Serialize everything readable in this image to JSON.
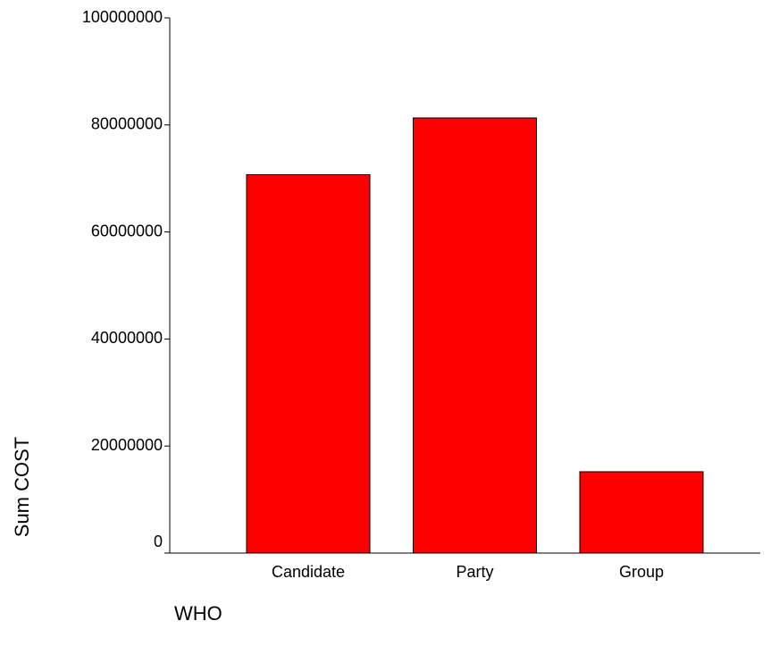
{
  "chart_data": {
    "type": "bar",
    "categories": [
      "Candidate",
      "Party",
      "Group"
    ],
    "values": [
      70700000,
      81300000,
      15200000
    ],
    "color": "#ff0000",
    "xlabel": "WHO",
    "ylabel": "Sum COST",
    "ylim": [
      0,
      100000000
    ],
    "yticks": [
      0,
      20000000,
      40000000,
      60000000,
      80000000,
      100000000
    ],
    "grid": false
  }
}
